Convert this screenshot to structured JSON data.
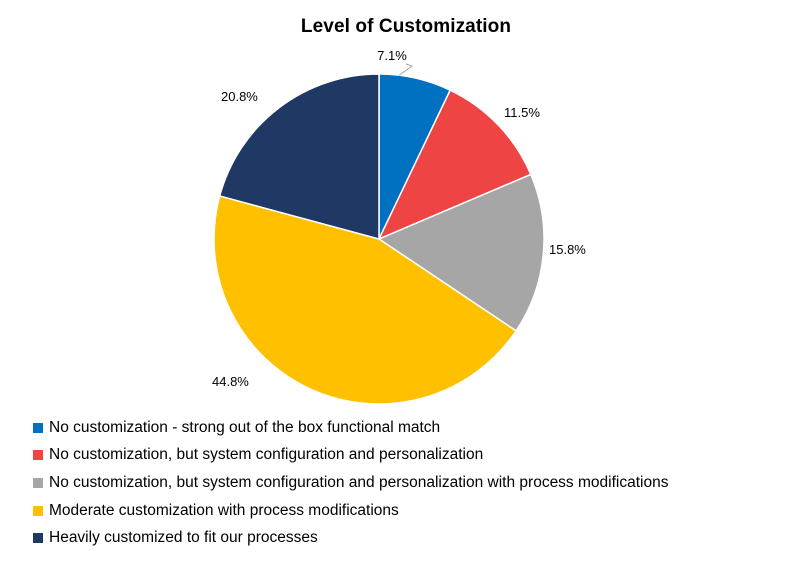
{
  "chart_data": {
    "type": "pie",
    "title": "Level of Customization",
    "slices": [
      {
        "name": "No customization - strong out of the box functional match",
        "value": 7.1,
        "label": "7.1%",
        "color": "#0070C0"
      },
      {
        "name": "No customization, but system configuration and personalization",
        "value": 11.5,
        "label": "11.5%",
        "color": "#EE4444"
      },
      {
        "name": "No customization, but system configuration and personalization with process modifications",
        "value": 15.8,
        "label": "15.8%",
        "color": "#A6A6A6"
      },
      {
        "name": "Moderate customization with process modifications",
        "value": 44.8,
        "label": "44.8%",
        "color": "#FFC000"
      },
      {
        "name": "Heavily customized to fit our processes",
        "value": 20.8,
        "label": "20.8%",
        "color": "#1F3864"
      }
    ],
    "start_angle": "12 o'clock",
    "direction": "clockwise",
    "legend_position": "bottom-left"
  }
}
